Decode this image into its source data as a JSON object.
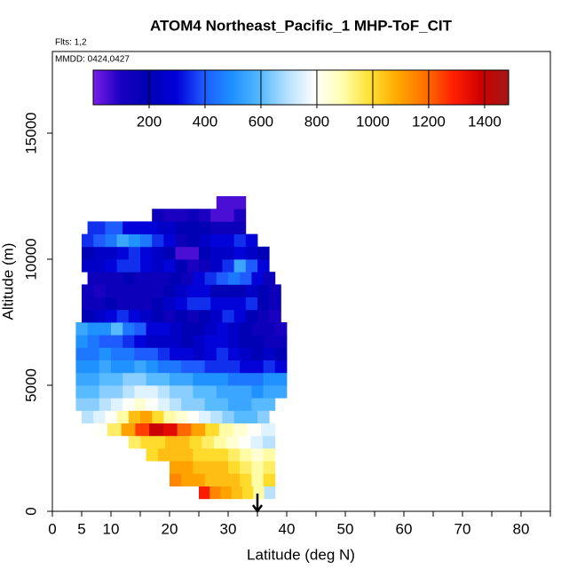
{
  "chart_data": {
    "type": "heatmap",
    "title": "ATOM4 Northeast_Pacific_1 MHP-ToF_CIT",
    "annotations": [
      "Flts: 1,2",
      "MMDD: 0424,0427"
    ],
    "x_label": "Latitude (deg N)",
    "y_label": "Altitude (m)",
    "xlim": [
      0,
      85
    ],
    "xticks": [
      0,
      5,
      10,
      20,
      30,
      40,
      50,
      60,
      70,
      80
    ],
    "xminor_ticks": [
      15,
      25,
      35,
      45,
      55,
      65,
      75,
      85
    ],
    "ylim": [
      0,
      18240
    ],
    "yticks": [
      0,
      5000,
      10000,
      15000
    ],
    "clim": [
      0,
      1486
    ],
    "cticks": [
      200,
      400,
      600,
      800,
      1000,
      1200,
      1400
    ],
    "colors": [
      "#7a1de8",
      "#1a00c0",
      "#0000b4",
      "#0000d8",
      "#1e5aff",
      "#1e90ff",
      "#52b8ff",
      "#b4e0ff",
      "#ffffff",
      "#ffffb0",
      "#ffe030",
      "#ffa800",
      "#ff7000",
      "#ff2000",
      "#d00000",
      "#a01818"
    ],
    "arrow_latitude": 35,
    "rows": [
      {
        "alt": [
          500,
          1000
        ],
        "lat": [
          25,
          38
        ],
        "values": [
          1300,
          1150,
          1100,
          1050,
          1000,
          900,
          700
        ]
      },
      {
        "alt": [
          1000,
          1500
        ],
        "lat": [
          20,
          38
        ],
        "values": [
          1150,
          1100,
          1100,
          1050,
          1050,
          1050,
          1000,
          900,
          1000
        ]
      },
      {
        "alt": [
          1500,
          2000
        ],
        "lat": [
          20,
          38
        ],
        "values": [
          1100,
          1100,
          1050,
          1050,
          1050,
          1000,
          950,
          900,
          950
        ]
      },
      {
        "alt": [
          2000,
          2500
        ],
        "lat": [
          16,
          38
        ],
        "values": [
          1000,
          1050,
          1050,
          1050,
          1000,
          1000,
          1000,
          950,
          900,
          850,
          900
        ]
      },
      {
        "alt": [
          2500,
          3000
        ],
        "lat": [
          13,
          38
        ],
        "values": [
          950,
          1000,
          1000,
          1050,
          1050,
          1000,
          950,
          900,
          850,
          800,
          750,
          700
        ]
      },
      {
        "alt": [
          3000,
          3500
        ],
        "lat": [
          7,
          38
        ],
        "values": [
          800,
          950,
          1100,
          1250,
          1400,
          1350,
          1200,
          1100,
          1000,
          900,
          850,
          800,
          750
        ]
      },
      {
        "alt": [
          3500,
          4000
        ],
        "lat": [
          5,
          37
        ],
        "values": [
          700,
          750,
          800,
          900,
          1050,
          1100,
          1000,
          900,
          850,
          800,
          750,
          700,
          650,
          600,
          600,
          650
        ]
      },
      {
        "alt": [
          4000,
          4500
        ],
        "lat": [
          4,
          38
        ],
        "values": [
          650,
          650,
          700,
          750,
          800,
          850,
          800,
          750,
          700,
          650,
          650,
          600,
          600,
          550,
          550,
          600,
          600
        ]
      },
      {
        "alt": [
          4500,
          5000
        ],
        "lat": [
          4,
          40
        ],
        "values": [
          600,
          600,
          650,
          650,
          700,
          750,
          750,
          700,
          650,
          650,
          600,
          600,
          550,
          550,
          550,
          500,
          550,
          550
        ]
      },
      {
        "alt": [
          5000,
          5500
        ],
        "lat": [
          4,
          40
        ],
        "values": [
          550,
          550,
          600,
          600,
          650,
          650,
          600,
          600,
          550,
          550,
          500,
          500,
          500,
          450,
          450,
          450,
          500,
          500
        ]
      },
      {
        "alt": [
          5500,
          6000
        ],
        "lat": [
          4,
          40
        ],
        "values": [
          500,
          500,
          550,
          500,
          500,
          550,
          500,
          450,
          450,
          400,
          400,
          350,
          350,
          350,
          300,
          300,
          350,
          300
        ]
      },
      {
        "alt": [
          6000,
          6500
        ],
        "lat": [
          4,
          40
        ],
        "values": [
          450,
          450,
          500,
          450,
          450,
          400,
          400,
          350,
          300,
          300,
          250,
          300,
          350,
          300,
          250,
          200,
          250,
          200
        ]
      },
      {
        "alt": [
          6500,
          7000
        ],
        "lat": [
          4,
          40
        ],
        "values": [
          500,
          450,
          400,
          400,
          350,
          300,
          250,
          250,
          250,
          200,
          250,
          300,
          300,
          250,
          200,
          200,
          150,
          150
        ]
      },
      {
        "alt": [
          7000,
          7500
        ],
        "lat": [
          4,
          40
        ],
        "values": [
          550,
          500,
          500,
          600,
          450,
          400,
          300,
          300,
          250,
          200,
          200,
          250,
          300,
          250,
          200,
          150,
          150,
          100
        ]
      },
      {
        "alt": [
          7500,
          8000
        ],
        "lat": [
          5,
          39
        ],
        "values": [
          200,
          250,
          300,
          350,
          300,
          250,
          200,
          150,
          200,
          150,
          200,
          250,
          350,
          300,
          200,
          150,
          100
        ]
      },
      {
        "alt": [
          8000,
          8500
        ],
        "lat": [
          5,
          39
        ],
        "values": [
          150,
          150,
          200,
          150,
          150,
          150,
          200,
          250,
          300,
          350,
          350,
          300,
          300,
          300,
          350,
          200,
          150
        ]
      },
      {
        "alt": [
          8500,
          9000
        ],
        "lat": [
          5,
          39
        ],
        "values": [
          150,
          100,
          150,
          150,
          150,
          150,
          150,
          200,
          250,
          300,
          300,
          200,
          200,
          200,
          250,
          200,
          150
        ]
      },
      {
        "alt": [
          9000,
          9500
        ],
        "lat": [
          6,
          38
        ],
        "values": [
          150,
          150,
          150,
          200,
          150,
          150,
          150,
          200,
          150,
          300,
          350,
          400,
          450,
          400,
          300,
          150
        ]
      },
      {
        "alt": [
          9500,
          10000
        ],
        "lat": [
          5,
          37
        ],
        "values": [
          250,
          250,
          300,
          350,
          350,
          300,
          250,
          300,
          200,
          100,
          150,
          250,
          350,
          550,
          400,
          300
        ]
      },
      {
        "alt": [
          10000,
          10500
        ],
        "lat": [
          5,
          37
        ],
        "values": [
          200,
          250,
          250,
          300,
          350,
          300,
          250,
          200,
          50,
          50,
          200,
          250,
          250,
          300,
          250,
          200
        ]
      },
      {
        "alt": [
          10500,
          11000
        ],
        "lat": [
          5,
          35
        ],
        "values": [
          350,
          400,
          450,
          550,
          500,
          450,
          350,
          300,
          150,
          200,
          250,
          300,
          300,
          350,
          300
        ]
      },
      {
        "alt": [
          11000,
          11500
        ],
        "lat": [
          6,
          33
        ],
        "values": [
          350,
          400,
          300,
          300,
          250,
          200,
          200,
          150,
          150
        ]
      },
      {
        "alt": [
          11500,
          12000
        ],
        "lat": [
          17,
          33
        ],
        "values": [
          150,
          100,
          100,
          150,
          100,
          50,
          50,
          100
        ]
      },
      {
        "alt": [
          12000,
          12500
        ],
        "lat": [
          28,
          33
        ],
        "values": [
          50,
          50,
          50,
          50,
          50
        ]
      }
    ]
  }
}
